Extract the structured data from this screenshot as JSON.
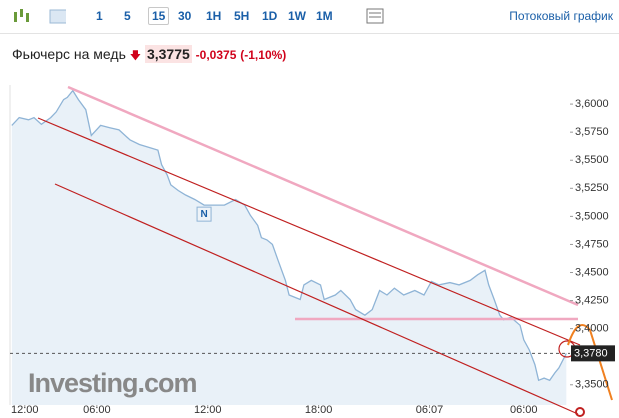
{
  "toolbar": {
    "buttons": [
      "1",
      "5",
      "15",
      "30",
      "1H",
      "5H",
      "1D",
      "1W",
      "1M"
    ],
    "link": "Потоковый график"
  },
  "header": {
    "title": "Фьючерс на медь",
    "price": "3,3775",
    "change": "-0,0375",
    "change_pct": "(-1,10%)"
  },
  "watermark": "Investing.com",
  "chart_data": {
    "type": "area",
    "color": "#8fb4d6",
    "fill": "#e9f1f8",
    "x": [
      0,
      0.4,
      0.9,
      1.2,
      1.6,
      2.1,
      2.4,
      2.8,
      3.0,
      3.3,
      3.6,
      4.0,
      4.3,
      4.8,
      5.3,
      5.8,
      6.4,
      6.9,
      7.5,
      7.9,
      8.1,
      8.4,
      8.6,
      9.0,
      9.4,
      9.9,
      10.4,
      11.0,
      11.5,
      12.1,
      12.6,
      12.9,
      13.3,
      13.5,
      13.8,
      14.1,
      14.4,
      14.8,
      15.0,
      15.6,
      15.8,
      16.2,
      16.7,
      16.9,
      17.5,
      17.8,
      18.3,
      18.6,
      19.1,
      19.5,
      19.9,
      20.3,
      20.7,
      21.2,
      21.8,
      22.3,
      22.7,
      23.1,
      23.7,
      24.2,
      24.8,
      25.2,
      25.6,
      25.8,
      26.1,
      26.4,
      26.6,
      27.0,
      27.5,
      27.7,
      28.0,
      28.3,
      28.5,
      28.8,
      29.1,
      29.4,
      29.6,
      30.0
    ],
    "values": [
      3.581,
      3.588,
      3.586,
      3.588,
      3.582,
      3.588,
      3.593,
      3.604,
      3.606,
      3.612,
      3.604,
      3.595,
      3.572,
      3.581,
      3.579,
      3.577,
      3.568,
      3.564,
      3.561,
      3.559,
      3.546,
      3.537,
      3.528,
      3.523,
      3.519,
      3.515,
      3.51,
      3.51,
      3.51,
      3.515,
      3.51,
      3.501,
      3.492,
      3.481,
      3.479,
      3.475,
      3.461,
      3.443,
      3.43,
      3.426,
      3.439,
      3.443,
      3.439,
      3.426,
      3.43,
      3.434,
      3.426,
      3.417,
      3.412,
      3.417,
      3.434,
      3.43,
      3.436,
      3.43,
      3.434,
      3.43,
      3.442,
      3.439,
      3.441,
      3.439,
      3.443,
      3.448,
      3.452,
      3.439,
      3.426,
      3.412,
      3.408,
      3.41,
      3.403,
      3.39,
      3.381,
      3.368,
      3.354,
      3.356,
      3.354,
      3.361,
      3.365,
      3.378
    ],
    "xlim": [
      -0.1,
      30.2
    ],
    "xticks": [
      {
        "value": 0.7,
        "label": "12:00"
      },
      {
        "value": 4.6,
        "label": "06:00"
      },
      {
        "value": 10.6,
        "label": "12:00"
      },
      {
        "value": 16.6,
        "label": "18:00"
      },
      {
        "value": 22.6,
        "label": "06.07"
      },
      {
        "value": 27.7,
        "label": "06:00"
      }
    ],
    "ylim": [
      3.332,
      3.617
    ],
    "yticks": [
      {
        "value": 3.35,
        "label": "3,3500"
      },
      {
        "value": 3.4,
        "label": "3,4000"
      },
      {
        "value": 3.425,
        "label": "3,4250"
      },
      {
        "value": 3.45,
        "label": "3,4500"
      },
      {
        "value": 3.475,
        "label": "3,4750"
      },
      {
        "value": 3.5,
        "label": "3,5000"
      },
      {
        "value": 3.525,
        "label": "3,5250"
      },
      {
        "value": 3.55,
        "label": "3,5500"
      },
      {
        "value": 3.575,
        "label": "3,5750"
      },
      {
        "value": 3.6,
        "label": "3,6000"
      }
    ],
    "last_price": {
      "value": 3.378,
      "label": "3,3780"
    },
    "marker": "N"
  }
}
